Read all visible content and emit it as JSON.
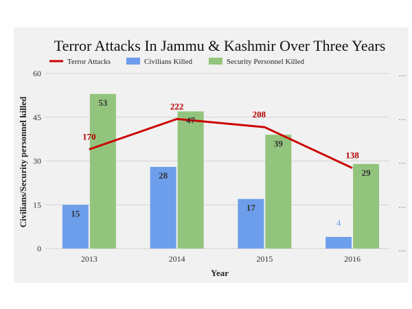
{
  "chart_data": {
    "type": "bar",
    "title": "Terror Attacks In Jammu & Kashmir Over Three Years",
    "xlabel": "Year",
    "ylabel": "Civilians/Security personnel killed",
    "categories": [
      "2013",
      "2014",
      "2015",
      "2016"
    ],
    "ylim": [
      0,
      60
    ],
    "yticks": [
      "0",
      "15",
      "30",
      "45",
      "60"
    ],
    "legend_position": "top",
    "series": [
      {
        "name": "Civilians Killed",
        "type": "bar",
        "color": "#6d9eeb",
        "values": [
          15,
          28,
          17,
          4
        ],
        "labels": [
          "15",
          "28",
          "17",
          "4"
        ]
      },
      {
        "name": "Security Personnel Killed",
        "type": "bar",
        "color": "#93c47d",
        "values": [
          53,
          47,
          39,
          29
        ],
        "labels": [
          "53",
          "47",
          "39",
          "29"
        ]
      },
      {
        "name": "Terror Attacks",
        "type": "line",
        "color": "#cc0000",
        "values": [
          170,
          222,
          208,
          138
        ],
        "labels": [
          "170",
          "222",
          "208",
          "138"
        ],
        "right_axis_ticks": [
          "…",
          "…",
          "…",
          "…",
          "…"
        ]
      }
    ],
    "grid": true
  }
}
